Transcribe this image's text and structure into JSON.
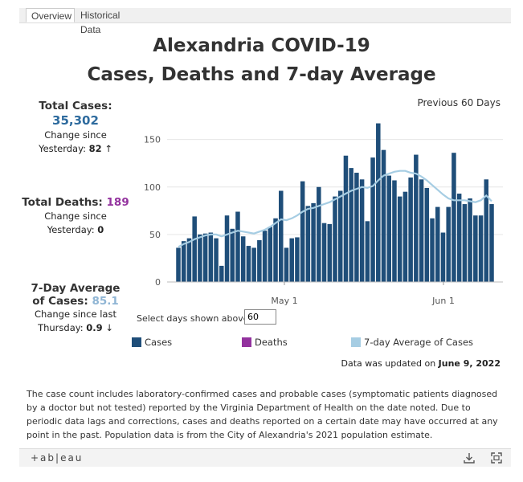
{
  "tabs": [
    {
      "label": "Overview"
    },
    {
      "label": "Historical Data"
    }
  ],
  "title_line1": "Alexandria COVID-19",
  "title_line2": "Cases, Deaths and 7-day Average",
  "period": "Previous 60 Days",
  "total_cases": {
    "label": "Total Cases:",
    "value": "35,302",
    "change_line1": "Change since",
    "change_prefix": "Yesterday: ",
    "change_value": "82",
    "arrow": "↑"
  },
  "total_deaths": {
    "label": "Total Deaths: ",
    "value": "189",
    "change_line1": "Change since",
    "change_prefix": "Yesterday: ",
    "change_value": "0"
  },
  "avg_cases": {
    "label_line1": "7-Day Average",
    "label_line2": "of Cases: ",
    "value": "85.1",
    "change_line1": "Change since last",
    "change_prefix": "Thursday: ",
    "change_value": "0.9",
    "arrow": "↓"
  },
  "selector": {
    "label": "Select days shown above:",
    "value": "60"
  },
  "legend": [
    {
      "label": "Cases",
      "color": "#1f4e79"
    },
    {
      "label": "Deaths",
      "color": "#93329e"
    },
    {
      "label": "7-day Average of Cases",
      "color": "#a6cde3"
    }
  ],
  "updated": {
    "prefix": "Data was updated on ",
    "date": "June 9, 2022"
  },
  "note": "The case count includes laboratory-confirmed cases and probable cases (symptomatic patients diagnosed by a doctor but not tested) reported by the Virginia Department of Health on the date noted. Due to periodic data lags and  corrections, cases and deaths reported on a certain date may have occurred at any point in the past. Population data is from the City of Alexandria's 2021 population estimate.",
  "footer": {
    "brand": "+ab|eau"
  },
  "colors": {
    "cases": "#1f4e79",
    "deaths": "#93329e",
    "average": "#a6cde3",
    "cases_value": "#2e6b9e",
    "deaths_value": "#93329e",
    "avg_value": "#8fb5d4"
  },
  "chart_data": {
    "type": "bar",
    "x_ticks": [
      "May 1",
      "Jun 1"
    ],
    "y_ticks": [
      0,
      50,
      100,
      150
    ],
    "ylim": [
      0,
      170
    ],
    "series": [
      {
        "name": "Cases",
        "type": "bar",
        "values": [
          36,
          43,
          46,
          69,
          50,
          51,
          52,
          46,
          17,
          70,
          56,
          74,
          48,
          38,
          36,
          44,
          54,
          58,
          67,
          96,
          36,
          46,
          47,
          106,
          80,
          83,
          100,
          62,
          61,
          90,
          96,
          133,
          120,
          115,
          108,
          64,
          131,
          167,
          139,
          112,
          107,
          90,
          95,
          110,
          134,
          108,
          99,
          67,
          79,
          52,
          79,
          136,
          93,
          82,
          88,
          70,
          70,
          108,
          82
        ]
      },
      {
        "name": "7-day Average of Cases",
        "type": "line",
        "values": [
          37,
          40,
          42,
          45,
          47,
          49,
          50,
          50,
          48,
          50,
          52,
          54,
          53,
          52,
          51,
          53,
          55,
          58,
          62,
          66,
          65,
          67,
          70,
          74,
          77,
          78,
          80,
          82,
          84,
          87,
          90,
          93,
          96,
          98,
          100,
          99,
          101,
          107,
          112,
          114,
          116,
          117,
          117,
          115,
          114,
          111,
          107,
          102,
          97,
          92,
          88,
          86,
          86,
          86,
          85,
          84,
          86,
          91,
          85
        ]
      }
    ]
  }
}
